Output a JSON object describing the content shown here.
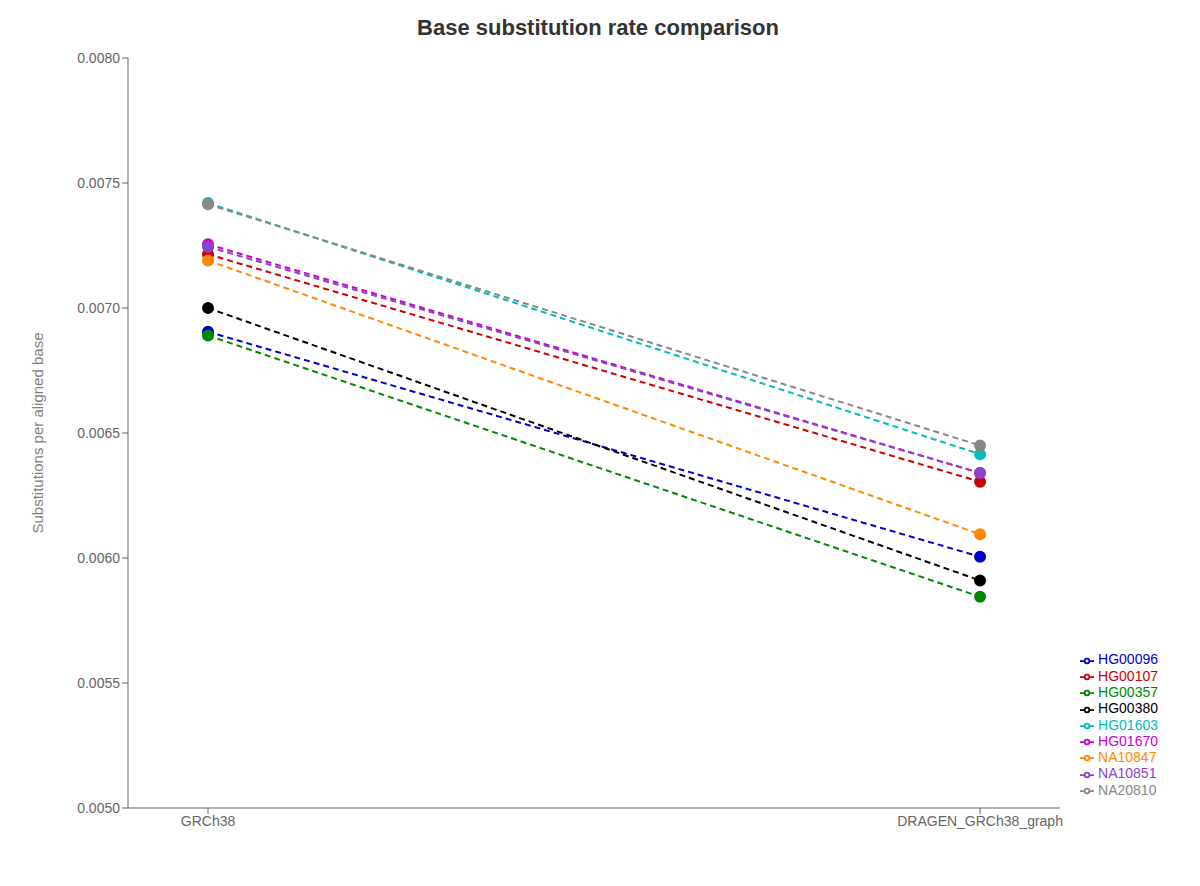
{
  "chart_data": {
    "type": "line",
    "title": "Base substitution rate comparison",
    "ylabel": "Substitutions per aligned base",
    "categories": [
      "GRCh38",
      "DRAGEN_GRCh38_graph"
    ],
    "series": [
      {
        "name": "HG00096",
        "color": "#0000cc",
        "values": [
          0.006905,
          0.006005
        ]
      },
      {
        "name": "HG00107",
        "color": "#cc0000",
        "values": [
          0.007215,
          0.006305
        ]
      },
      {
        "name": "HG00357",
        "color": "#008800",
        "values": [
          0.00689,
          0.005845
        ]
      },
      {
        "name": "HG00380",
        "color": "#000000",
        "values": [
          0.007,
          0.00591
        ]
      },
      {
        "name": "HG01603",
        "color": "#00bbbb",
        "values": [
          0.00742,
          0.006415
        ]
      },
      {
        "name": "HG01670",
        "color": "#cc00cc",
        "values": [
          0.007255,
          0.00634
        ]
      },
      {
        "name": "NA10847",
        "color": "#ff8800",
        "values": [
          0.00719,
          0.006095
        ]
      },
      {
        "name": "NA10851",
        "color": "#8844cc",
        "values": [
          0.007245,
          0.00634
        ]
      },
      {
        "name": "NA20810",
        "color": "#888888",
        "values": [
          0.007415,
          0.00645
        ]
      }
    ],
    "ylim": [
      0.005,
      0.008
    ],
    "yticks": [
      {
        "value": 0.005,
        "label": "0.0050"
      },
      0.0055,
      {
        "value": 0.006,
        "label": "0.0060"
      },
      0.0065,
      {
        "value": 0.007,
        "label": "0.0070"
      },
      0.0075,
      {
        "value": 0.008,
        "label": "0.0080"
      }
    ],
    "grid": false,
    "legend": "lower right",
    "marker": "o",
    "line_style": "dashed"
  }
}
